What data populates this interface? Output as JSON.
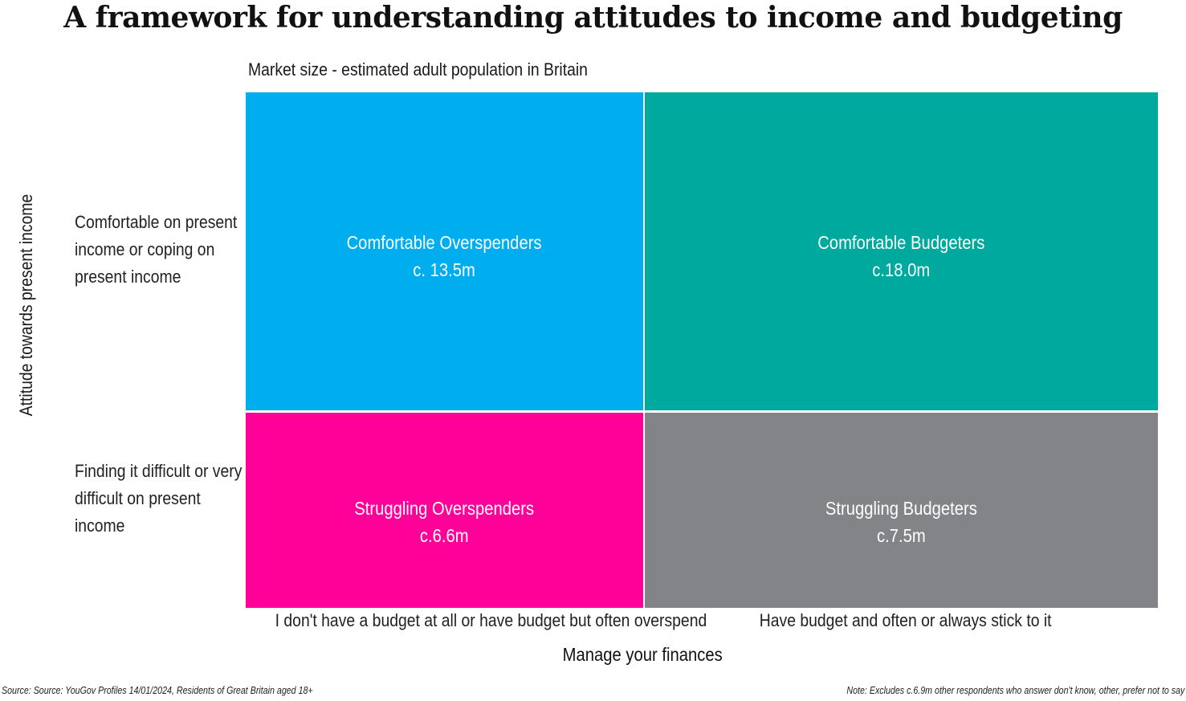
{
  "title": "A framework for understanding attitudes to income and budgeting",
  "subtitle": "Market size - estimated adult population in Britain",
  "y_axis_label": "Attitude towards present income",
  "x_axis_label": "Manage your finances",
  "row_labels": [
    "Comfortable on present income or coping on present income",
    "Finding it difficult or very difficult on present income"
  ],
  "column_labels": [
    "I don't have a budget at all or have budget but often overspend",
    "Have budget and often or always stick to it"
  ],
  "source": "Source: Source: YouGov Profiles 14/01/2024, Residents of Great Britain aged 18+",
  "note": "Note: Excludes c.6.9m other respondents who answer don't know, other, prefer not to say",
  "chart_data": {
    "type": "table",
    "title": "A framework for understanding attitudes to income and budgeting",
    "subtitle": "Market size - estimated adult population in Britain",
    "xlabel": "Manage your finances",
    "ylabel": "Attitude towards present income",
    "rows": [
      "Comfortable on present income or coping on present income",
      "Finding it difficult or very difficult on present income"
    ],
    "columns": [
      "I don't have a budget at all or have budget but often overspend",
      "Have budget and often or always stick to it"
    ],
    "cells": [
      {
        "row": 0,
        "col": 0,
        "segment": "Comfortable Overspenders",
        "label": "c. 13.5m",
        "value_millions": 13.5,
        "color": "#00aeef"
      },
      {
        "row": 0,
        "col": 1,
        "segment": "Comfortable Budgeters",
        "label": "c.18.0m",
        "value_millions": 18.0,
        "color": "#00a99d"
      },
      {
        "row": 1,
        "col": 0,
        "segment": "Struggling Overspenders",
        "label": "c.6.6m",
        "value_millions": 6.6,
        "color": "#ff0099"
      },
      {
        "row": 1,
        "col": 1,
        "segment": "Struggling Budgeters",
        "label": "c.7.5m",
        "value_millions": 7.5,
        "color": "#838487"
      }
    ]
  }
}
